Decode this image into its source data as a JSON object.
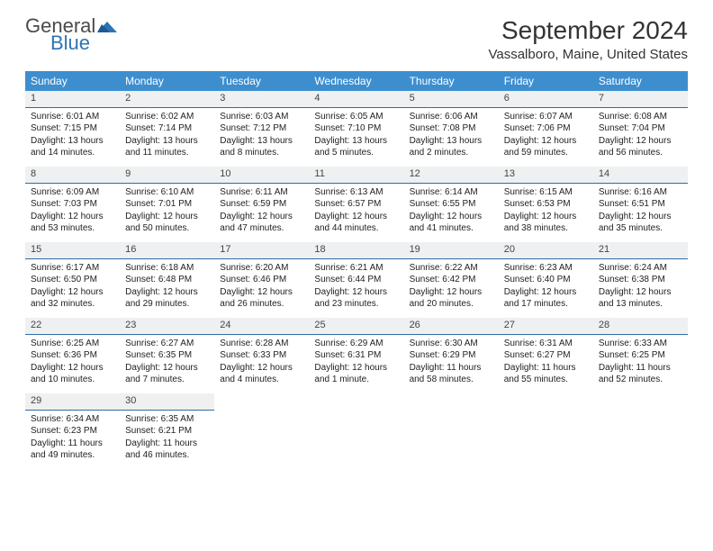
{
  "brand": {
    "name1": "General",
    "name2": "Blue"
  },
  "title": "September 2024",
  "location": "Vassalboro, Maine, United States",
  "colors": {
    "header_bg": "#3d8ecf",
    "header_fg": "#ffffff",
    "daynum_bg": "#eef0f1",
    "daynum_border": "#2e6da4",
    "brand_gray": "#4a4a4a",
    "brand_blue": "#2e74b5"
  },
  "weekdays": [
    "Sunday",
    "Monday",
    "Tuesday",
    "Wednesday",
    "Thursday",
    "Friday",
    "Saturday"
  ],
  "weeks": [
    [
      {
        "n": "1",
        "sr": "Sunrise: 6:01 AM",
        "ss": "Sunset: 7:15 PM",
        "dl": "Daylight: 13 hours and 14 minutes."
      },
      {
        "n": "2",
        "sr": "Sunrise: 6:02 AM",
        "ss": "Sunset: 7:14 PM",
        "dl": "Daylight: 13 hours and 11 minutes."
      },
      {
        "n": "3",
        "sr": "Sunrise: 6:03 AM",
        "ss": "Sunset: 7:12 PM",
        "dl": "Daylight: 13 hours and 8 minutes."
      },
      {
        "n": "4",
        "sr": "Sunrise: 6:05 AM",
        "ss": "Sunset: 7:10 PM",
        "dl": "Daylight: 13 hours and 5 minutes."
      },
      {
        "n": "5",
        "sr": "Sunrise: 6:06 AM",
        "ss": "Sunset: 7:08 PM",
        "dl": "Daylight: 13 hours and 2 minutes."
      },
      {
        "n": "6",
        "sr": "Sunrise: 6:07 AM",
        "ss": "Sunset: 7:06 PM",
        "dl": "Daylight: 12 hours and 59 minutes."
      },
      {
        "n": "7",
        "sr": "Sunrise: 6:08 AM",
        "ss": "Sunset: 7:04 PM",
        "dl": "Daylight: 12 hours and 56 minutes."
      }
    ],
    [
      {
        "n": "8",
        "sr": "Sunrise: 6:09 AM",
        "ss": "Sunset: 7:03 PM",
        "dl": "Daylight: 12 hours and 53 minutes."
      },
      {
        "n": "9",
        "sr": "Sunrise: 6:10 AM",
        "ss": "Sunset: 7:01 PM",
        "dl": "Daylight: 12 hours and 50 minutes."
      },
      {
        "n": "10",
        "sr": "Sunrise: 6:11 AM",
        "ss": "Sunset: 6:59 PM",
        "dl": "Daylight: 12 hours and 47 minutes."
      },
      {
        "n": "11",
        "sr": "Sunrise: 6:13 AM",
        "ss": "Sunset: 6:57 PM",
        "dl": "Daylight: 12 hours and 44 minutes."
      },
      {
        "n": "12",
        "sr": "Sunrise: 6:14 AM",
        "ss": "Sunset: 6:55 PM",
        "dl": "Daylight: 12 hours and 41 minutes."
      },
      {
        "n": "13",
        "sr": "Sunrise: 6:15 AM",
        "ss": "Sunset: 6:53 PM",
        "dl": "Daylight: 12 hours and 38 minutes."
      },
      {
        "n": "14",
        "sr": "Sunrise: 6:16 AM",
        "ss": "Sunset: 6:51 PM",
        "dl": "Daylight: 12 hours and 35 minutes."
      }
    ],
    [
      {
        "n": "15",
        "sr": "Sunrise: 6:17 AM",
        "ss": "Sunset: 6:50 PM",
        "dl": "Daylight: 12 hours and 32 minutes."
      },
      {
        "n": "16",
        "sr": "Sunrise: 6:18 AM",
        "ss": "Sunset: 6:48 PM",
        "dl": "Daylight: 12 hours and 29 minutes."
      },
      {
        "n": "17",
        "sr": "Sunrise: 6:20 AM",
        "ss": "Sunset: 6:46 PM",
        "dl": "Daylight: 12 hours and 26 minutes."
      },
      {
        "n": "18",
        "sr": "Sunrise: 6:21 AM",
        "ss": "Sunset: 6:44 PM",
        "dl": "Daylight: 12 hours and 23 minutes."
      },
      {
        "n": "19",
        "sr": "Sunrise: 6:22 AM",
        "ss": "Sunset: 6:42 PM",
        "dl": "Daylight: 12 hours and 20 minutes."
      },
      {
        "n": "20",
        "sr": "Sunrise: 6:23 AM",
        "ss": "Sunset: 6:40 PM",
        "dl": "Daylight: 12 hours and 17 minutes."
      },
      {
        "n": "21",
        "sr": "Sunrise: 6:24 AM",
        "ss": "Sunset: 6:38 PM",
        "dl": "Daylight: 12 hours and 13 minutes."
      }
    ],
    [
      {
        "n": "22",
        "sr": "Sunrise: 6:25 AM",
        "ss": "Sunset: 6:36 PM",
        "dl": "Daylight: 12 hours and 10 minutes."
      },
      {
        "n": "23",
        "sr": "Sunrise: 6:27 AM",
        "ss": "Sunset: 6:35 PM",
        "dl": "Daylight: 12 hours and 7 minutes."
      },
      {
        "n": "24",
        "sr": "Sunrise: 6:28 AM",
        "ss": "Sunset: 6:33 PM",
        "dl": "Daylight: 12 hours and 4 minutes."
      },
      {
        "n": "25",
        "sr": "Sunrise: 6:29 AM",
        "ss": "Sunset: 6:31 PM",
        "dl": "Daylight: 12 hours and 1 minute."
      },
      {
        "n": "26",
        "sr": "Sunrise: 6:30 AM",
        "ss": "Sunset: 6:29 PM",
        "dl": "Daylight: 11 hours and 58 minutes."
      },
      {
        "n": "27",
        "sr": "Sunrise: 6:31 AM",
        "ss": "Sunset: 6:27 PM",
        "dl": "Daylight: 11 hours and 55 minutes."
      },
      {
        "n": "28",
        "sr": "Sunrise: 6:33 AM",
        "ss": "Sunset: 6:25 PM",
        "dl": "Daylight: 11 hours and 52 minutes."
      }
    ],
    [
      {
        "n": "29",
        "sr": "Sunrise: 6:34 AM",
        "ss": "Sunset: 6:23 PM",
        "dl": "Daylight: 11 hours and 49 minutes."
      },
      {
        "n": "30",
        "sr": "Sunrise: 6:35 AM",
        "ss": "Sunset: 6:21 PM",
        "dl": "Daylight: 11 hours and 46 minutes."
      },
      null,
      null,
      null,
      null,
      null
    ]
  ]
}
